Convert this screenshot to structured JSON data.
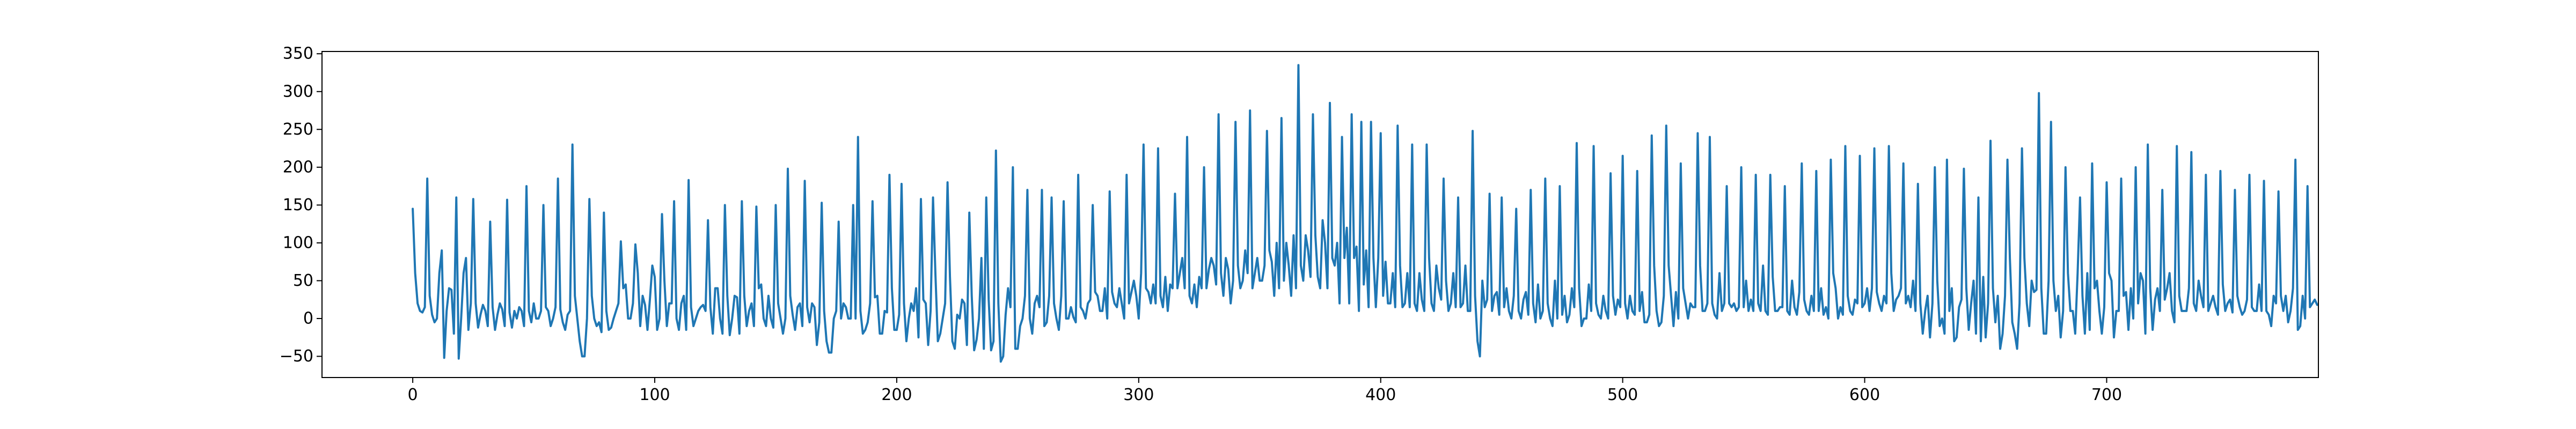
{
  "chart_data": {
    "type": "line",
    "title": "",
    "xlabel": "",
    "ylabel": "",
    "xlim": [
      -37.5,
      787.5
    ],
    "ylim": [
      -78,
      353
    ],
    "x_ticks": [
      0,
      100,
      200,
      300,
      400,
      500,
      600,
      700
    ],
    "y_ticks": [
      -50,
      0,
      50,
      100,
      150,
      200,
      250,
      300,
      350
    ],
    "x_tick_labels": [
      "0",
      "100",
      "200",
      "300",
      "400",
      "500",
      "600",
      "700"
    ],
    "y_tick_labels": [
      "−50",
      "0",
      "50",
      "100",
      "150",
      "200",
      "250",
      "300",
      "350"
    ],
    "grid": false,
    "legend": "none",
    "series": [
      {
        "color": "#1f77b4",
        "x_start": 0,
        "x_step": 1,
        "values": [
          145,
          60,
          20,
          10,
          8,
          15,
          185,
          30,
          5,
          -5,
          0,
          60,
          90,
          -52,
          10,
          40,
          38,
          -20,
          160,
          -53,
          0,
          60,
          80,
          -15,
          20,
          158,
          20,
          -12,
          5,
          18,
          10,
          -10,
          128,
          15,
          -15,
          5,
          20,
          12,
          -10,
          157,
          8,
          -12,
          10,
          0,
          15,
          10,
          -10,
          175,
          10,
          -5,
          20,
          0,
          0,
          10,
          150,
          15,
          10,
          -10,
          0,
          15,
          185,
          12,
          -5,
          -15,
          5,
          10,
          230,
          30,
          0,
          -30,
          -50,
          -50,
          0,
          158,
          30,
          0,
          -10,
          -5,
          -18,
          140,
          10,
          -15,
          -12,
          0,
          10,
          20,
          102,
          40,
          45,
          0,
          0,
          20,
          98,
          60,
          -10,
          30,
          18,
          -15,
          25,
          70,
          55,
          -15,
          0,
          138,
          50,
          -10,
          20,
          20,
          155,
          0,
          -15,
          20,
          30,
          -15,
          183,
          15,
          -10,
          0,
          10,
          15,
          18,
          10,
          130,
          15,
          -20,
          40,
          40,
          0,
          -20,
          150,
          30,
          -22,
          0,
          30,
          28,
          -20,
          155,
          30,
          -10,
          10,
          20,
          -10,
          148,
          40,
          45,
          0,
          -10,
          30,
          0,
          -12,
          150,
          20,
          0,
          -20,
          0,
          198,
          30,
          5,
          -15,
          15,
          20,
          -10,
          182,
          15,
          -5,
          20,
          15,
          -35,
          -5,
          153,
          10,
          -30,
          -45,
          -45,
          0,
          10,
          128,
          0,
          20,
          15,
          0,
          0,
          150,
          0,
          240,
          10,
          -20,
          -15,
          -5,
          20,
          155,
          28,
          30,
          -20,
          -20,
          10,
          8,
          190,
          40,
          -15,
          -15,
          5,
          178,
          20,
          -30,
          0,
          20,
          10,
          40,
          -25,
          158,
          25,
          20,
          -35,
          10,
          160,
          58,
          -30,
          -20,
          0,
          20,
          180,
          55,
          -30,
          -40,
          5,
          0,
          25,
          20,
          -35,
          140,
          30,
          -42,
          -28,
          0,
          80,
          -40,
          160,
          25,
          -42,
          -30,
          222,
          20,
          -57,
          -50,
          5,
          40,
          15,
          200,
          -40,
          -40,
          -10,
          0,
          30,
          170,
          0,
          -20,
          20,
          30,
          15,
          170,
          -10,
          -5,
          30,
          160,
          20,
          0,
          -15,
          30,
          155,
          0,
          0,
          15,
          2,
          -5,
          190,
          15,
          10,
          0,
          20,
          25,
          150,
          35,
          30,
          10,
          10,
          40,
          0,
          168,
          35,
          20,
          15,
          40,
          20,
          0,
          190,
          20,
          35,
          50,
          30,
          0,
          60,
          230,
          40,
          35,
          20,
          45,
          20,
          225,
          30,
          15,
          55,
          10,
          45,
          40,
          165,
          40,
          60,
          80,
          40,
          240,
          30,
          20,
          45,
          15,
          55,
          40,
          200,
          40,
          65,
          80,
          70,
          45,
          270,
          60,
          30,
          80,
          65,
          20,
          50,
          260,
          70,
          40,
          50,
          90,
          60,
          275,
          40,
          60,
          80,
          50,
          50,
          70,
          248,
          90,
          75,
          30,
          100,
          40,
          265,
          50,
          100,
          70,
          30,
          110,
          40,
          335,
          70,
          50,
          110,
          90,
          55,
          270,
          110,
          55,
          40,
          130,
          100,
          40,
          285,
          80,
          70,
          100,
          20,
          240,
          80,
          120,
          20,
          270,
          80,
          95,
          10,
          260,
          45,
          90,
          15,
          260,
          80,
          15,
          80,
          245,
          30,
          75,
          20,
          20,
          60,
          15,
          255,
          70,
          15,
          20,
          60,
          15,
          230,
          20,
          10,
          60,
          25,
          10,
          230,
          80,
          20,
          10,
          70,
          40,
          25,
          185,
          50,
          10,
          20,
          60,
          15,
          160,
          15,
          20,
          70,
          10,
          10,
          248,
          30,
          -30,
          -50,
          50,
          15,
          25,
          165,
          10,
          30,
          35,
          5,
          160,
          15,
          40,
          10,
          0,
          30,
          145,
          10,
          0,
          25,
          35,
          5,
          170,
          20,
          -5,
          45,
          0,
          10,
          185,
          20,
          0,
          -10,
          50,
          0,
          175,
          5,
          30,
          -5,
          5,
          40,
          15,
          232,
          40,
          -10,
          0,
          0,
          45,
          10,
          228,
          20,
          5,
          0,
          30,
          10,
          0,
          192,
          30,
          5,
          25,
          15,
          215,
          20,
          0,
          30,
          10,
          5,
          195,
          10,
          35,
          -5,
          -5,
          5,
          242,
          70,
          10,
          -10,
          -5,
          30,
          255,
          70,
          30,
          -10,
          35,
          0,
          205,
          40,
          20,
          0,
          20,
          15,
          15,
          245,
          70,
          10,
          10,
          20,
          240,
          20,
          5,
          0,
          60,
          10,
          20,
          175,
          20,
          15,
          20,
          10,
          15,
          200,
          15,
          50,
          10,
          25,
          10,
          190,
          20,
          10,
          70,
          10,
          5,
          190,
          55,
          10,
          10,
          15,
          15,
          175,
          10,
          5,
          50,
          15,
          5,
          35,
          205,
          25,
          10,
          5,
          30,
          10,
          195,
          10,
          40,
          5,
          15,
          0,
          210,
          60,
          40,
          0,
          15,
          5,
          228,
          30,
          10,
          5,
          25,
          20,
          215,
          15,
          20,
          40,
          10,
          40,
          225,
          35,
          20,
          10,
          30,
          20,
          228,
          60,
          10,
          25,
          30,
          40,
          205,
          20,
          30,
          15,
          50,
          10,
          178,
          20,
          -20,
          10,
          30,
          -25,
          20,
          200,
          50,
          -10,
          0,
          -20,
          210,
          10,
          40,
          -30,
          -25,
          15,
          25,
          198,
          40,
          -15,
          20,
          50,
          -20,
          160,
          -30,
          55,
          -25,
          20,
          235,
          40,
          -5,
          30,
          -40,
          -20,
          30,
          210,
          80,
          -5,
          -20,
          -40,
          20,
          225,
          80,
          20,
          -10,
          50,
          35,
          38,
          298,
          40,
          -20,
          -20,
          50,
          260,
          50,
          10,
          30,
          -25,
          10,
          200,
          60,
          10,
          10,
          -20,
          60,
          160,
          30,
          -20,
          60,
          -15,
          205,
          40,
          50,
          10,
          -20,
          15,
          180,
          60,
          50,
          -25,
          10,
          10,
          185,
          30,
          35,
          -15,
          40,
          0,
          200,
          20,
          60,
          50,
          -20,
          230,
          40,
          -15,
          25,
          40,
          10,
          170,
          25,
          40,
          60,
          10,
          -5,
          228,
          30,
          10,
          10,
          10,
          40,
          220,
          20,
          10,
          50,
          30,
          15,
          190,
          10,
          20,
          30,
          15,
          5,
          195,
          45,
          10,
          20,
          25,
          8,
          170,
          30,
          15,
          5,
          10,
          25,
          190,
          15,
          10,
          10,
          45,
          10,
          182,
          10,
          5,
          -10,
          30,
          20,
          168,
          30,
          10,
          30,
          -5,
          10,
          40,
          210,
          -15,
          -10,
          30,
          0,
          175,
          15,
          20,
          25,
          18
        ]
      }
    ]
  }
}
